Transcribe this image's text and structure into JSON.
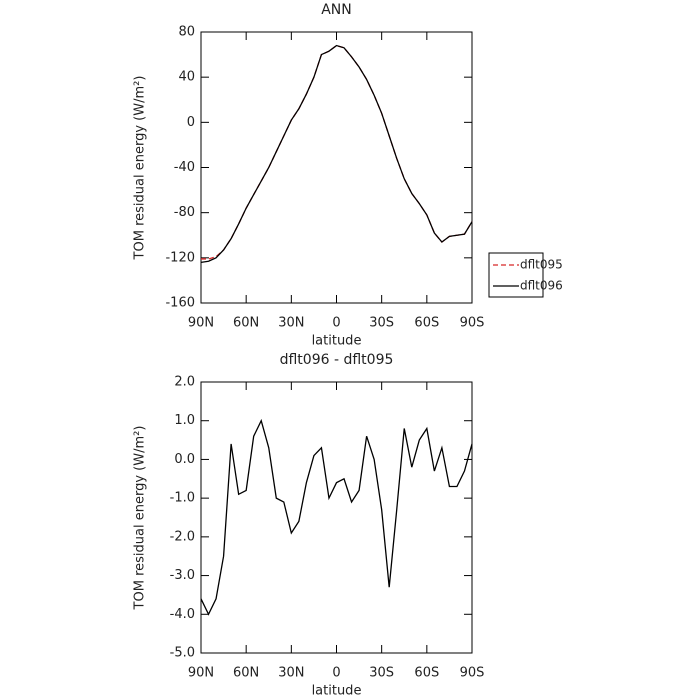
{
  "chart_data": [
    {
      "type": "line",
      "title": "ANN",
      "x_label": "latitude",
      "y_label": "TOM residual energy (W/m²)",
      "x": [
        90,
        85,
        80,
        75,
        70,
        65,
        60,
        55,
        50,
        45,
        40,
        35,
        30,
        25,
        20,
        15,
        10,
        5,
        0,
        -5,
        -10,
        -15,
        -20,
        -25,
        -30,
        -35,
        -40,
        -45,
        -50,
        -55,
        -60,
        -65,
        -70,
        -75,
        -80,
        -85,
        -90
      ],
      "series": [
        {
          "name": "dflt095",
          "color": "#d62728",
          "linestyle": "dashed",
          "values": [
            -121,
            -121,
            -119,
            -113,
            -103,
            -90,
            -76,
            -64,
            -52,
            -40,
            -26,
            -12,
            2,
            12,
            25,
            40,
            60,
            63,
            68,
            66,
            58,
            49,
            38,
            24,
            8,
            -12,
            -32,
            -50,
            -63,
            -72,
            -82,
            -98,
            -106,
            -101,
            -100,
            -99,
            -88
          ]
        },
        {
          "name": "dflt096",
          "color": "#000000",
          "linestyle": "solid",
          "values": [
            -124,
            -123,
            -120,
            -113,
            -103,
            -90,
            -76,
            -64,
            -52,
            -40,
            -26,
            -12,
            2,
            12,
            25,
            40,
            60,
            63,
            68,
            66,
            58,
            49,
            38,
            24,
            8,
            -12,
            -32,
            -50,
            -63,
            -72,
            -82,
            -98,
            -106,
            -101,
            -100,
            -99,
            -88
          ]
        }
      ],
      "xlim": [
        90,
        -90
      ],
      "xticks": [
        {
          "value": 90,
          "label": "90N"
        },
        {
          "value": 60,
          "label": "60N"
        },
        {
          "value": 30,
          "label": "30N"
        },
        0,
        {
          "value": -30,
          "label": "30S"
        },
        {
          "value": -60,
          "label": "60S"
        },
        {
          "value": -90,
          "label": "90S"
        }
      ],
      "ylim": [
        -160,
        80
      ],
      "yticks": [
        -160,
        -120,
        -80,
        -40,
        0,
        40,
        80
      ],
      "legend": "right"
    },
    {
      "type": "line",
      "title": "dflt096 - dflt095",
      "x_label": "latitude",
      "y_label": "TOM residual energy (W/m²)",
      "x": [
        90,
        85,
        80,
        75,
        70,
        65,
        60,
        55,
        50,
        45,
        40,
        35,
        30,
        25,
        20,
        15,
        10,
        5,
        0,
        -5,
        -10,
        -15,
        -20,
        -25,
        -30,
        -35,
        -40,
        -45,
        -50,
        -55,
        -60,
        -65,
        -70,
        -75,
        -80,
        -85,
        -90
      ],
      "series": [
        {
          "name": null,
          "color": "#000000",
          "linestyle": "solid",
          "values": [
            -3.6,
            -4.0,
            -3.6,
            -2.5,
            0.4,
            -0.9,
            -0.8,
            0.6,
            1.0,
            0.3,
            -1.0,
            -1.1,
            -1.9,
            -1.6,
            -0.6,
            0.1,
            0.3,
            -1.0,
            -0.6,
            -0.5,
            -1.1,
            -0.8,
            0.6,
            0.0,
            -1.3,
            -3.3,
            -1.3,
            0.8,
            -0.2,
            0.5,
            0.8,
            -0.3,
            0.3,
            -0.7,
            -0.7,
            -0.3,
            0.4
          ]
        }
      ],
      "xlim": [
        90,
        -90
      ],
      "xticks": [
        {
          "value": 90,
          "label": "90N"
        },
        {
          "value": 60,
          "label": "60N"
        },
        {
          "value": 30,
          "label": "30N"
        },
        0,
        {
          "value": -30,
          "label": "30S"
        },
        {
          "value": -60,
          "label": "60S"
        },
        {
          "value": -90,
          "label": "90S"
        }
      ],
      "ylim": [
        -5,
        2
      ],
      "yticks": [
        {
          "value": -5,
          "label": "-5.0"
        },
        {
          "value": -4,
          "label": "-4.0"
        },
        {
          "value": -3,
          "label": "-3.0"
        },
        {
          "value": -2,
          "label": "-2.0"
        },
        {
          "value": -1,
          "label": "-1.0"
        },
        {
          "value": 0,
          "label": "0.0"
        },
        {
          "value": 1,
          "label": "1.0"
        },
        {
          "value": 2,
          "label": "2.0"
        }
      ]
    }
  ]
}
